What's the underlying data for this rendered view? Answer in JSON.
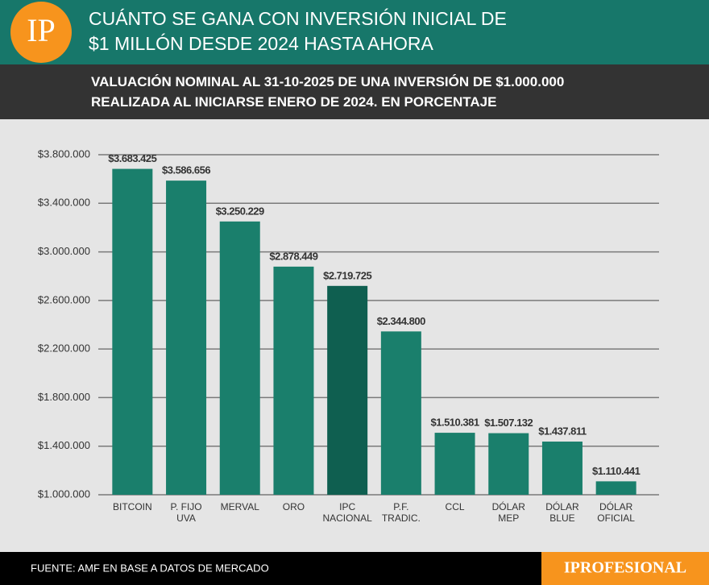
{
  "logo": "IP",
  "source": "FUENTE: AMF EN BASE A DATOS DE MERCADO",
  "brand": "IPROFESIONAL",
  "chart_data": {
    "type": "bar",
    "title": "CUÁNTO SE GANA CON INVERSIÓN INICIAL DE\n$1 MILLÓN DESDE 2024 HASTA AHORA",
    "subtitle": "VALUACIÓN NOMINAL AL 31-10-2025 DE UNA INVERSIÓN DE $1.000.000\nREALIZADA AL INICIARSE ENERO DE 2024. EN PORCENTAJE",
    "categories": [
      "BITCOIN",
      "P. FIJO\nUVA",
      "MERVAL",
      "ORO",
      "IPC\nNACIONAL",
      "P.F.\nTRADIC.",
      "CCL",
      "DÓLAR\nMEP",
      "DÓLAR\nBLUE",
      "DÓLAR\nOFICIAL"
    ],
    "values": [
      3683425,
      3586656,
      3250229,
      2878449,
      2719725,
      2344800,
      1510381,
      1507132,
      1437811,
      1110441
    ],
    "value_labels": [
      "$3.683.425",
      "$3.586.656",
      "$3.250.229",
      "$2.878.449",
      "$2.719.725",
      "$2.344.800",
      "$1.510.381",
      "$1.507.132",
      "$1.437.811",
      "$1.110.441"
    ],
    "colors": [
      "#1a7f6c",
      "#1a7f6c",
      "#1a7f6c",
      "#1a7f6c",
      "#0f5f50",
      "#1a7f6c",
      "#1a7f6c",
      "#1a7f6c",
      "#1a7f6c",
      "#1a7f6c"
    ],
    "ylim": [
      1000000,
      3800000
    ],
    "yticks": [
      {
        "value": 1000000,
        "label": "$1.000.000"
      },
      {
        "value": 1400000,
        "label": "$1.400.000"
      },
      {
        "value": 1800000,
        "label": "$1.800.000"
      },
      {
        "value": 2200000,
        "label": "$2.200.000"
      },
      {
        "value": 2600000,
        "label": "$2.600.000"
      },
      {
        "value": 3000000,
        "label": "$3.000.000"
      },
      {
        "value": 3400000,
        "label": "$3.400.000"
      },
      {
        "value": 3800000,
        "label": "$3.800.000"
      }
    ],
    "grid": true
  }
}
